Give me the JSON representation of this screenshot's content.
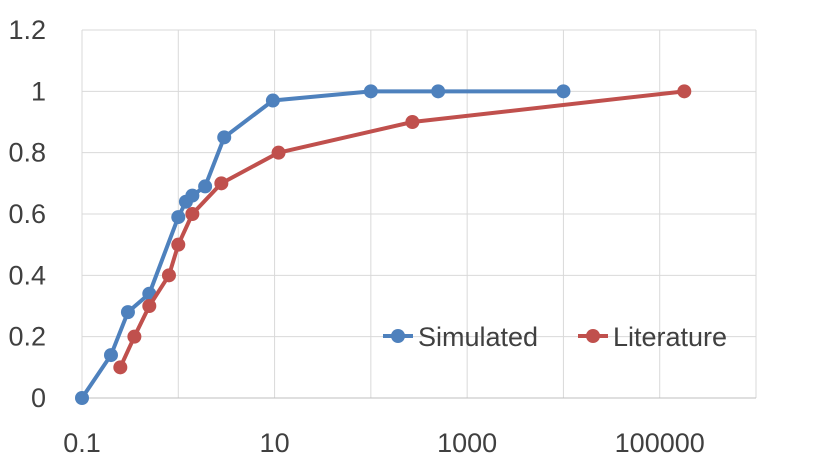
{
  "chart_data": {
    "type": "line",
    "title": "",
    "xlabel": "",
    "ylabel": "",
    "x_scale": "log",
    "xlim": [
      0.1,
      1000000
    ],
    "ylim": [
      0,
      1.2
    ],
    "x_ticks": [
      0.1,
      10,
      1000,
      100000
    ],
    "x_tick_labels": [
      "0.1",
      "10",
      "1000",
      "100000"
    ],
    "y_ticks": [
      0,
      0.2,
      0.4,
      0.6,
      0.8,
      1,
      1.2
    ],
    "y_tick_labels": [
      "0",
      "0.2",
      "0.4",
      "0.6",
      "0.8",
      "1",
      "1.2"
    ],
    "grid": true,
    "legend": "bottom-right",
    "series": [
      {
        "name": "Simulated",
        "color": "#4e81bd",
        "x": [
          0.1,
          0.2,
          0.3,
          0.5,
          1,
          1.2,
          1.4,
          1.9,
          3,
          9.6,
          100,
          500,
          10000
        ],
        "y": [
          0,
          0.14,
          0.28,
          0.34,
          0.59,
          0.64,
          0.66,
          0.69,
          0.85,
          0.97,
          1,
          1,
          1
        ]
      },
      {
        "name": "Literature",
        "color": "#c0504d",
        "x": [
          0.25,
          0.35,
          0.5,
          0.8,
          1,
          1.4,
          2.8,
          11,
          270,
          180000
        ],
        "y": [
          0.1,
          0.2,
          0.3,
          0.4,
          0.5,
          0.6,
          0.7,
          0.8,
          0.9,
          1
        ]
      }
    ]
  }
}
